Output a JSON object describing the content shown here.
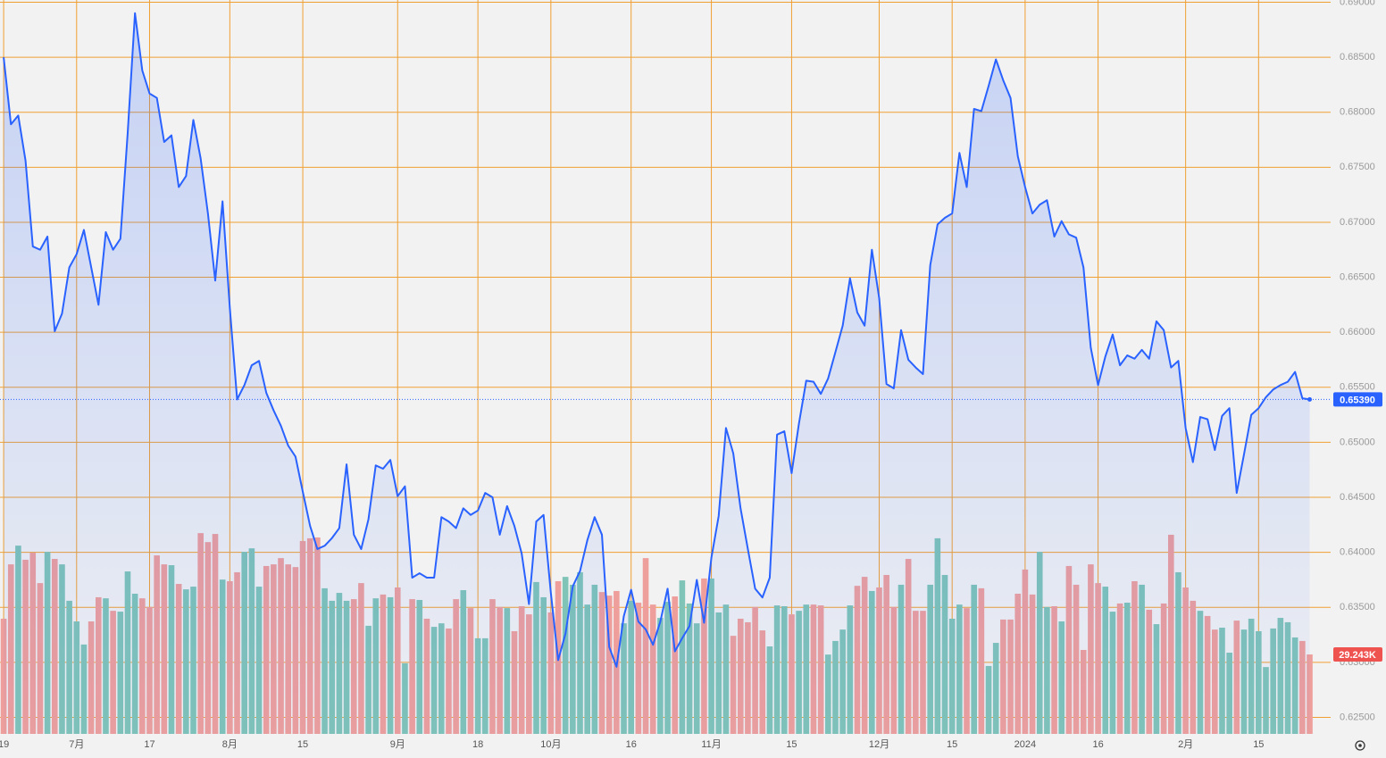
{
  "chart_data": {
    "type": "price-volume",
    "categories": [
      "19",
      null,
      null,
      null,
      null,
      null,
      null,
      null,
      null,
      null,
      "7月",
      null,
      null,
      null,
      null,
      null,
      null,
      null,
      null,
      null,
      "17",
      null,
      null,
      null,
      null,
      null,
      null,
      null,
      null,
      null,
      null,
      "8月",
      null,
      null,
      null,
      null,
      null,
      null,
      null,
      null,
      null,
      "15",
      null,
      null,
      null,
      null,
      null,
      null,
      null,
      null,
      null,
      null,
      null,
      null,
      "9月",
      null,
      null,
      null,
      null,
      null,
      null,
      null,
      null,
      null,
      null,
      "18",
      null,
      null,
      null,
      null,
      null,
      null,
      null,
      null,
      null,
      "10月",
      null,
      null,
      null,
      null,
      null,
      null,
      null,
      null,
      null,
      null,
      "16",
      null,
      null,
      null,
      null,
      null,
      null,
      null,
      null,
      null,
      null,
      "11月",
      null,
      null,
      null,
      null,
      null,
      null,
      null,
      null,
      null,
      null,
      "15",
      null,
      null,
      null,
      null,
      null,
      null,
      null,
      null,
      null,
      null,
      null,
      "12月",
      null,
      null,
      null,
      null,
      null,
      null,
      null,
      null,
      null,
      "15",
      null,
      null,
      null,
      null,
      null,
      null,
      null,
      null,
      null,
      "2024",
      null,
      null,
      null,
      null,
      null,
      null,
      null,
      null,
      null,
      "16",
      null,
      null,
      null,
      null,
      null,
      null,
      null,
      null,
      null,
      null,
      null,
      "2月",
      null,
      null,
      null,
      null,
      null,
      null,
      null,
      null,
      null,
      "15",
      null,
      null,
      null,
      null,
      null,
      null,
      null
    ],
    "price": {
      "color": "#2962ff",
      "values": [
        0.685,
        0.6789,
        0.6797,
        0.6756,
        0.6678,
        0.6675,
        0.6687,
        0.6601,
        0.6617,
        0.6659,
        0.6671,
        0.6693,
        0.6659,
        0.6625,
        0.6691,
        0.6675,
        0.6685,
        0.6781,
        0.689,
        0.6838,
        0.6817,
        0.6813,
        0.6773,
        0.6779,
        0.6732,
        0.6742,
        0.6793,
        0.6758,
        0.6708,
        0.6647,
        0.6719,
        0.6622,
        0.6539,
        0.6552,
        0.657,
        0.6574,
        0.6545,
        0.6529,
        0.6515,
        0.6497,
        0.6487,
        0.6455,
        0.6424,
        0.6403,
        0.6406,
        0.6413,
        0.6422,
        0.648,
        0.6416,
        0.6403,
        0.643,
        0.6479,
        0.6476,
        0.6484,
        0.6451,
        0.646,
        0.6377,
        0.6381,
        0.6377,
        0.6377,
        0.6432,
        0.6428,
        0.6422,
        0.644,
        0.6434,
        0.6438,
        0.6454,
        0.645,
        0.6416,
        0.6442,
        0.6424,
        0.6399,
        0.6353,
        0.6428,
        0.6434,
        0.6363,
        0.6302,
        0.6326,
        0.6369,
        0.6383,
        0.6411,
        0.6432,
        0.6416,
        0.6314,
        0.6296,
        0.6342,
        0.6366,
        0.6337,
        0.633,
        0.6316,
        0.6337,
        0.6367,
        0.631,
        0.6322,
        0.6333,
        0.6375,
        0.6336,
        0.6395,
        0.6433,
        0.6513,
        0.649,
        0.644,
        0.6403,
        0.6367,
        0.6359,
        0.6377,
        0.6507,
        0.651,
        0.6472,
        0.6517,
        0.6556,
        0.6555,
        0.6544,
        0.6558,
        0.6582,
        0.6606,
        0.6649,
        0.6618,
        0.6606,
        0.6675,
        0.6631,
        0.6553,
        0.6549,
        0.6602,
        0.6575,
        0.6568,
        0.6562,
        0.6661,
        0.6698,
        0.6704,
        0.6708,
        0.6763,
        0.6732,
        0.6803,
        0.6801,
        0.6824,
        0.6848,
        0.6829,
        0.6813,
        0.676,
        0.6732,
        0.6708,
        0.6716,
        0.672,
        0.6687,
        0.6701,
        0.6689,
        0.6686,
        0.6659,
        0.6586,
        0.6552,
        0.6578,
        0.6598,
        0.657,
        0.6579,
        0.6576,
        0.6584,
        0.6576,
        0.661,
        0.6602,
        0.6568,
        0.6574,
        0.6513,
        0.6482,
        0.6523,
        0.6521,
        0.6493,
        0.6524,
        0.6531,
        0.6454,
        0.6489,
        0.6525,
        0.6531,
        0.6541,
        0.6548,
        0.6552,
        0.6555,
        0.6564,
        0.654,
        0.6539
      ],
      "last_label": "0.65390"
    },
    "volume": {
      "up_color": "#80c4b8",
      "down_color": "#ee9f9c",
      "values": [
        42.4,
        62.4,
        69.3,
        64.1,
        66.7,
        55.5,
        67.0,
        64.4,
        62.4,
        49.0,
        41.4,
        32.9,
        41.4,
        50.3,
        49.9,
        45.3,
        45.0,
        59.8,
        51.6,
        49.9,
        46.7,
        65.7,
        62.4,
        62.1,
        55.2,
        53.2,
        54.2,
        73.9,
        70.6,
        73.6,
        56.8,
        56.2,
        59.5,
        67.0,
        68.3,
        54.2,
        61.8,
        62.4,
        64.7,
        62.4,
        61.4,
        71.0,
        72.0,
        72.3,
        53.6,
        49.0,
        51.9,
        49.0,
        49.6,
        55.5,
        39.8,
        49.9,
        51.3,
        50.3,
        53.9,
        26.0,
        49.6,
        49.3,
        42.4,
        39.4,
        40.7,
        38.8,
        49.6,
        52.9,
        46.3,
        35.2,
        35.2,
        49.6,
        46.7,
        46.3,
        37.8,
        47.0,
        44.0,
        55.9,
        50.3,
        44.7,
        56.2,
        57.8,
        54.9,
        59.5,
        47.6,
        54.9,
        52.2,
        50.9,
        52.6,
        40.7,
        49.0,
        48.3,
        64.7,
        47.6,
        42.7,
        48.6,
        50.6,
        56.5,
        48.0,
        40.7,
        57.2,
        57.2,
        44.7,
        47.6,
        36.1,
        42.4,
        41.1,
        46.7,
        38.1,
        32.2,
        47.3,
        47.0,
        44.0,
        45.3,
        47.6,
        47.6,
        47.3,
        29.2,
        34.2,
        38.4,
        47.3,
        54.5,
        57.8,
        52.6,
        53.9,
        58.5,
        46.7,
        54.9,
        64.4,
        45.3,
        45.3,
        54.9,
        72.0,
        58.5,
        42.4,
        47.6,
        46.3,
        54.9,
        53.6,
        25.0,
        33.5,
        42.1,
        42.1,
        51.6,
        60.5,
        51.3,
        67.0,
        46.7,
        47.0,
        41.4,
        61.8,
        54.9,
        30.9,
        62.4,
        55.5,
        54.2,
        45.0,
        48.0,
        48.3,
        56.2,
        54.9,
        45.7,
        40.4,
        48.0,
        73.3,
        59.5,
        53.9,
        49.0,
        45.3,
        43.4,
        38.4,
        39.1,
        29.9,
        41.7,
        38.4,
        42.4,
        37.8,
        24.6,
        38.8,
        42.7,
        41.1,
        35.5,
        34.2,
        29.243
      ],
      "last_label": "29.243K"
    },
    "ylim": [
      0.6235,
      0.6902
    ],
    "yticks": [
      {
        "value": 0.625,
        "label": "0.62500"
      },
      {
        "value": 0.63,
        "label": "0.63000"
      },
      {
        "value": 0.635,
        "label": "0.63500"
      },
      {
        "value": 0.64,
        "label": "0.64000"
      },
      {
        "value": 0.645,
        "label": "0.64500"
      },
      {
        "value": 0.65,
        "label": "0.65000"
      },
      {
        "value": 0.655,
        "label": "0.65500"
      },
      {
        "value": 0.66,
        "label": "0.66000"
      },
      {
        "value": 0.665,
        "label": "0.66500"
      },
      {
        "value": 0.67,
        "label": "0.67000"
      },
      {
        "value": 0.675,
        "label": "0.67500"
      },
      {
        "value": 0.68,
        "label": "0.68000"
      },
      {
        "value": 0.685,
        "label": "0.68500"
      },
      {
        "value": 0.69,
        "label": "0.69000"
      }
    ],
    "grid": true,
    "grid_color": "#f0a032"
  }
}
